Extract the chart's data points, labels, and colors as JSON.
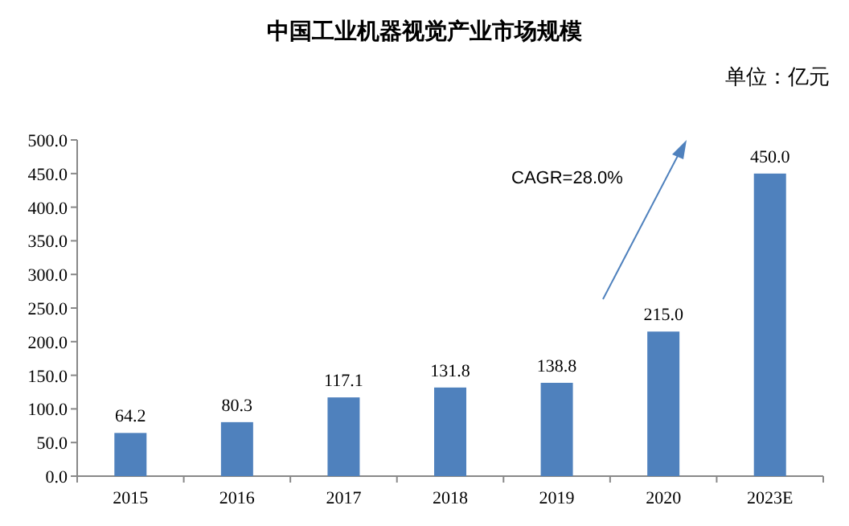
{
  "chart_data": {
    "type": "bar",
    "title": "中国工业机器视觉产业市场规模",
    "annotations": [
      "单位：亿元",
      "CAGR=28.0%"
    ],
    "categories": [
      "2015",
      "2016",
      "2017",
      "2018",
      "2019",
      "2020",
      "2023E"
    ],
    "values": [
      64.2,
      80.3,
      117.1,
      131.8,
      138.8,
      215.0,
      450.0
    ],
    "value_labels": [
      "64.2",
      "80.3",
      "117.1",
      "131.8",
      "138.8",
      "215.0",
      "450.0"
    ],
    "color": "#4f81bd",
    "ylim": [
      0,
      500
    ],
    "yticks": [
      {
        "value": 0,
        "label": "0.0"
      },
      {
        "value": 50,
        "label": "50.0"
      },
      {
        "value": 100,
        "label": "100.0"
      },
      {
        "value": 150,
        "label": "150.0"
      },
      {
        "value": 200,
        "label": "200.0"
      },
      {
        "value": 250,
        "label": "250.0"
      },
      {
        "value": 300,
        "label": "300.0"
      },
      {
        "value": 350,
        "label": "350.0"
      },
      {
        "value": 400,
        "label": "400.0"
      },
      {
        "value": 450,
        "label": "450.0"
      },
      {
        "value": 500,
        "label": "500.0"
      }
    ],
    "grid": false
  }
}
